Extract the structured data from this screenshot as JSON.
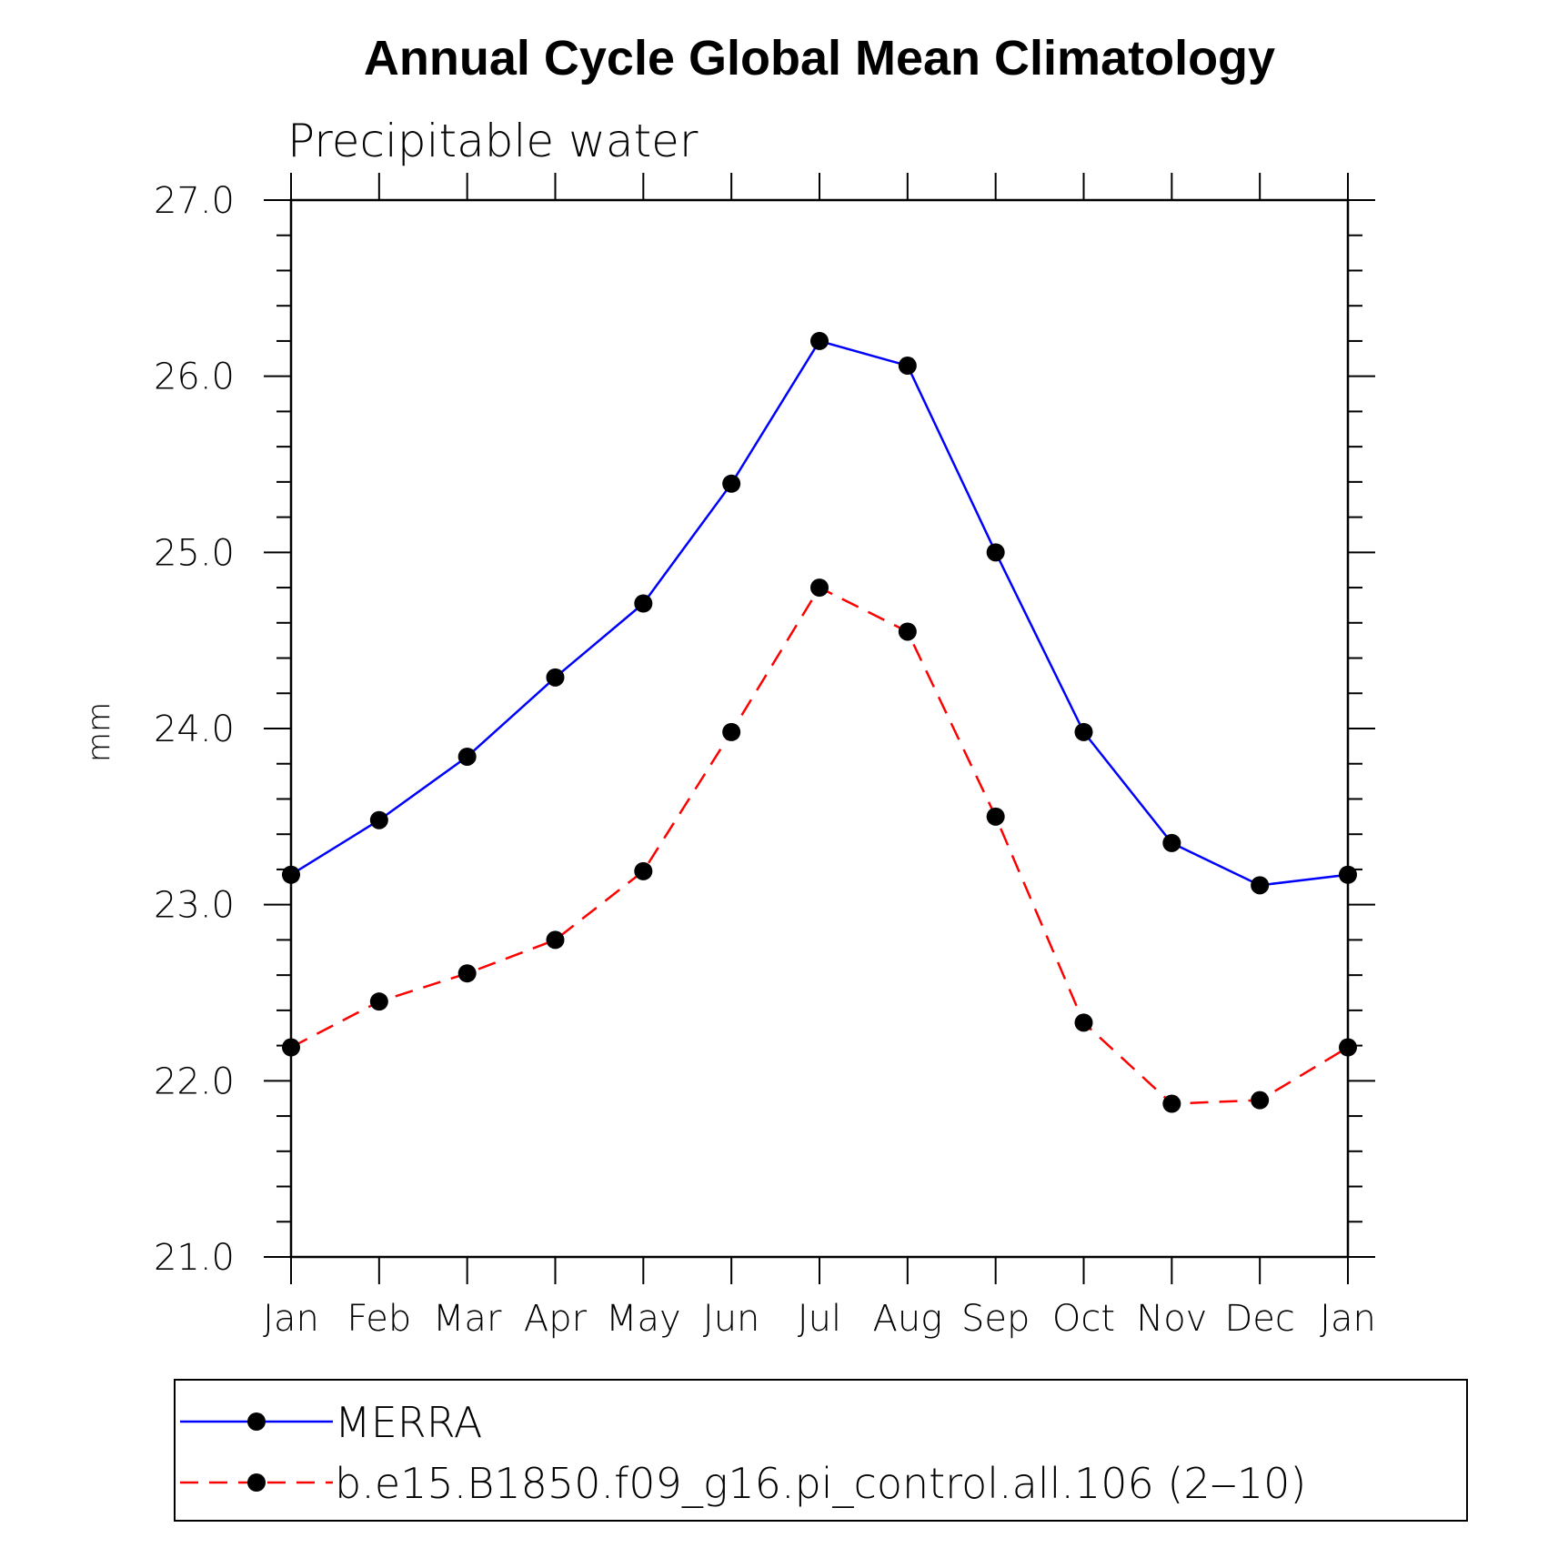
{
  "chart_data": {
    "type": "line",
    "title": "Annual Cycle Global Mean Climatology",
    "subtitle": "Precipitable water",
    "xlabel": "",
    "ylabel": "mm",
    "categories": [
      "Jan",
      "Feb",
      "Mar",
      "Apr",
      "May",
      "Jun",
      "Jul",
      "Aug",
      "Sep",
      "Oct",
      "Nov",
      "Dec",
      "Jan"
    ],
    "ylim": [
      21.0,
      27.0
    ],
    "yticks": [
      21.0,
      22.0,
      23.0,
      24.0,
      25.0,
      26.0,
      27.0
    ],
    "ytick_labels": [
      "21.0",
      "22.0",
      "23.0",
      "24.0",
      "25.0",
      "26.0",
      "27.0"
    ],
    "y_minor_step": 0.2,
    "grid": false,
    "legend_position": "bottom",
    "series": [
      {
        "name": "MERRA",
        "color": "#0000ff",
        "dashed": false,
        "values": [
          23.17,
          23.48,
          23.84,
          24.29,
          24.71,
          25.39,
          26.2,
          26.06,
          25.0,
          23.98,
          23.35,
          23.11,
          23.17
        ]
      },
      {
        "name": "b.e15.B1850.f09_g16.pi_control.all.106 (2‒10)",
        "color": "#ff0000",
        "dashed": true,
        "values": [
          22.19,
          22.45,
          22.61,
          22.8,
          23.19,
          23.98,
          24.8,
          24.55,
          23.5,
          22.33,
          21.87,
          21.89,
          22.19
        ]
      }
    ]
  }
}
